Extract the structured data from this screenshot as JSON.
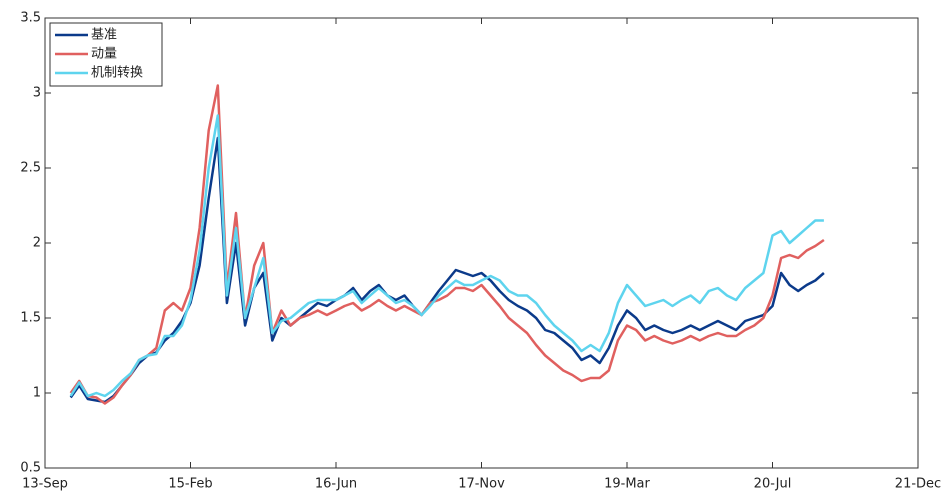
{
  "chart_data": {
    "type": "line",
    "x": [
      "13-Dec",
      "14-Jan",
      "14-Feb",
      "14-Mar",
      "14-Apr",
      "14-May",
      "14-Jun",
      "14-Jul",
      "14-Aug",
      "14-Sep",
      "14-Oct",
      "14-Nov",
      "14-Dec",
      "15-Jan",
      "15-Feb",
      "15-Mar",
      "15-Apr",
      "15-May",
      "15-Jun",
      "15-Jul",
      "15-Aug",
      "15-Sep",
      "15-Oct",
      "15-Nov",
      "15-Dec",
      "16-Jan",
      "16-Feb",
      "16-Mar",
      "16-Apr",
      "16-May",
      "16-Jun",
      "16-Jul",
      "16-Aug",
      "16-Sep",
      "16-Oct",
      "16-Nov",
      "16-Dec",
      "17-Jan",
      "17-Feb",
      "17-Mar",
      "17-Apr",
      "17-May",
      "17-Jun",
      "17-Jul",
      "17-Aug",
      "17-Sep",
      "17-Oct",
      "17-Nov",
      "17-Dec",
      "18-Jan",
      "18-Feb",
      "18-Mar",
      "18-Apr",
      "18-May",
      "18-Jun",
      "18-Jul",
      "18-Aug",
      "18-Sep",
      "18-Oct",
      "18-Nov",
      "18-Dec",
      "19-Jan",
      "19-Feb",
      "19-Mar",
      "19-Apr",
      "19-May",
      "19-Jun",
      "19-Jul",
      "19-Aug",
      "19-Sep",
      "19-Oct",
      "19-Nov",
      "19-Dec",
      "20-Jan",
      "20-Feb",
      "20-Mar",
      "20-Apr",
      "20-May",
      "20-Jun",
      "20-Jul",
      "20-Aug",
      "20-Sep",
      "20-Oct",
      "20-Nov",
      "20-Dec",
      "21-Jan"
    ],
    "series": [
      {
        "name": "基准",
        "color": "#0b3a8a",
        "values": [
          0.97,
          1.05,
          0.96,
          0.95,
          0.94,
          0.98,
          1.05,
          1.12,
          1.2,
          1.25,
          1.27,
          1.35,
          1.4,
          1.48,
          1.6,
          1.85,
          2.3,
          2.7,
          1.6,
          2.0,
          1.45,
          1.7,
          1.8,
          1.35,
          1.5,
          1.45,
          1.5,
          1.55,
          1.6,
          1.58,
          1.62,
          1.65,
          1.7,
          1.62,
          1.68,
          1.72,
          1.65,
          1.62,
          1.65,
          1.58,
          1.52,
          1.6,
          1.68,
          1.75,
          1.82,
          1.8,
          1.78,
          1.8,
          1.75,
          1.68,
          1.62,
          1.58,
          1.55,
          1.5,
          1.42,
          1.4,
          1.35,
          1.3,
          1.22,
          1.25,
          1.2,
          1.3,
          1.45,
          1.55,
          1.5,
          1.42,
          1.45,
          1.42,
          1.4,
          1.42,
          1.45,
          1.42,
          1.45,
          1.48,
          1.45,
          1.42,
          1.48,
          1.5,
          1.52,
          1.58,
          1.8,
          1.72,
          1.68,
          1.72,
          1.75,
          1.8
        ]
      },
      {
        "name": "动量",
        "color": "#e0605f",
        "values": [
          1.0,
          1.08,
          0.98,
          0.97,
          0.93,
          0.97,
          1.05,
          1.12,
          1.22,
          1.25,
          1.3,
          1.55,
          1.6,
          1.55,
          1.7,
          2.1,
          2.75,
          3.05,
          1.7,
          2.2,
          1.5,
          1.85,
          2.0,
          1.4,
          1.55,
          1.45,
          1.5,
          1.52,
          1.55,
          1.52,
          1.55,
          1.58,
          1.6,
          1.55,
          1.58,
          1.62,
          1.58,
          1.55,
          1.58,
          1.55,
          1.52,
          1.6,
          1.62,
          1.65,
          1.7,
          1.7,
          1.68,
          1.72,
          1.65,
          1.58,
          1.5,
          1.45,
          1.4,
          1.32,
          1.25,
          1.2,
          1.15,
          1.12,
          1.08,
          1.1,
          1.1,
          1.15,
          1.35,
          1.45,
          1.42,
          1.35,
          1.38,
          1.35,
          1.33,
          1.35,
          1.38,
          1.35,
          1.38,
          1.4,
          1.38,
          1.38,
          1.42,
          1.45,
          1.5,
          1.65,
          1.9,
          1.92,
          1.9,
          1.95,
          1.98,
          2.02
        ]
      },
      {
        "name": "机制转换",
        "color": "#5ed4ee",
        "values": [
          0.98,
          1.07,
          0.98,
          1.0,
          0.98,
          1.02,
          1.08,
          1.13,
          1.22,
          1.25,
          1.26,
          1.38,
          1.38,
          1.45,
          1.62,
          1.95,
          2.5,
          2.85,
          1.65,
          2.1,
          1.5,
          1.7,
          1.9,
          1.4,
          1.48,
          1.5,
          1.55,
          1.6,
          1.62,
          1.62,
          1.62,
          1.65,
          1.68,
          1.6,
          1.65,
          1.7,
          1.65,
          1.6,
          1.62,
          1.58,
          1.52,
          1.58,
          1.65,
          1.7,
          1.75,
          1.72,
          1.72,
          1.75,
          1.78,
          1.75,
          1.68,
          1.65,
          1.65,
          1.6,
          1.52,
          1.45,
          1.4,
          1.35,
          1.28,
          1.32,
          1.28,
          1.4,
          1.6,
          1.72,
          1.65,
          1.58,
          1.6,
          1.62,
          1.58,
          1.62,
          1.65,
          1.6,
          1.68,
          1.7,
          1.65,
          1.62,
          1.7,
          1.75,
          1.8,
          2.05,
          2.08,
          2.0,
          2.05,
          2.1,
          2.15,
          2.15
        ]
      }
    ],
    "xlim": [
      "13-Sep",
      "21-Dec"
    ],
    "xticks": [
      "13-Sep",
      "15-Feb",
      "16-Jun",
      "17-Nov",
      "19-Mar",
      "20-Jul",
      "21-Dec"
    ],
    "ylim": [
      0.5,
      3.5
    ],
    "yticks": [
      0.5,
      1,
      1.5,
      2,
      2.5,
      3,
      3.5
    ],
    "legend": "upper left",
    "grid": false
  }
}
